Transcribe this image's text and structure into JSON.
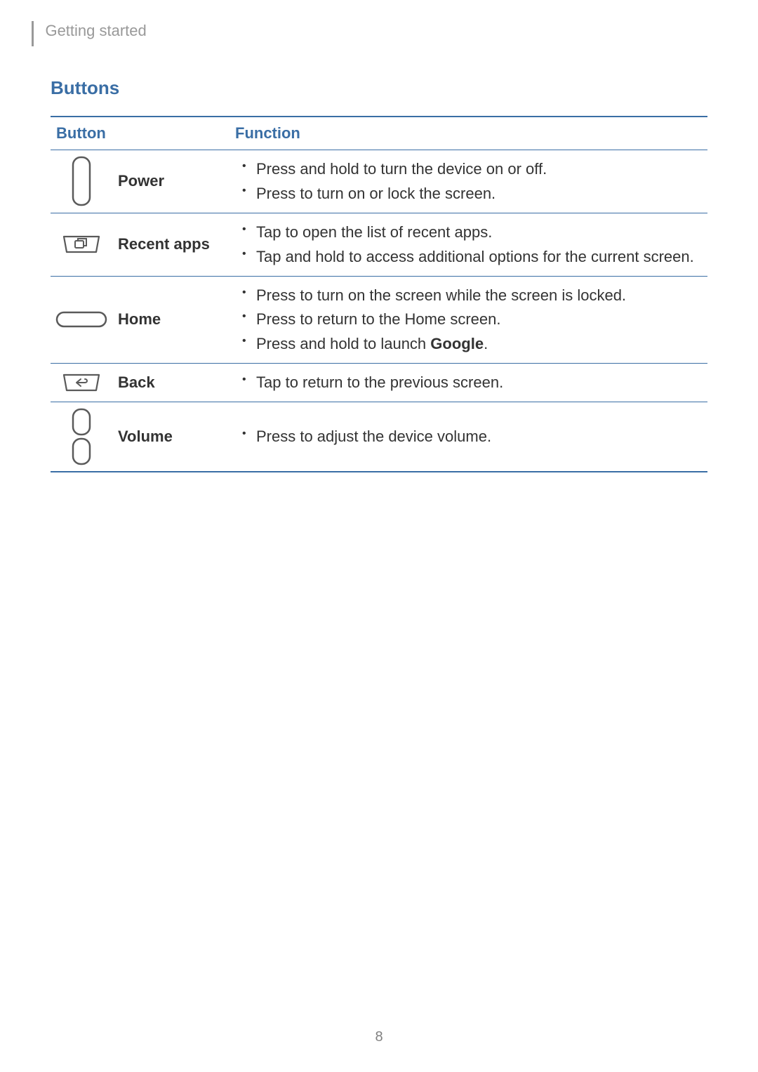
{
  "breadcrumb": "Getting started",
  "section_title": "Buttons",
  "page_number": "8",
  "table": {
    "headers": {
      "button": "Button",
      "function": "Function"
    },
    "rows": [
      {
        "label": "Power",
        "icon": "power",
        "functions": [
          "Press and hold to turn the device on or off.",
          "Press to turn on or lock the screen."
        ]
      },
      {
        "label": "Recent apps",
        "icon": "recent",
        "functions": [
          "Tap to open the list of recent apps.",
          "Tap and hold to access additional options for the current screen."
        ]
      },
      {
        "label": "Home",
        "icon": "home",
        "functions": [
          "Press to turn on the screen while the screen is locked.",
          "Press to return to the Home screen.",
          "Press and hold to launch <b>Google</b>."
        ]
      },
      {
        "label": "Back",
        "icon": "back",
        "functions": [
          "Tap to return to the previous screen."
        ]
      },
      {
        "label": "Volume",
        "icon": "volume",
        "functions": [
          "Press to adjust the device volume."
        ]
      }
    ]
  },
  "colors": {
    "accent": "#3a6ea5",
    "text": "#333333",
    "muted": "#999999",
    "icon_stroke": "#5a5a5a"
  }
}
